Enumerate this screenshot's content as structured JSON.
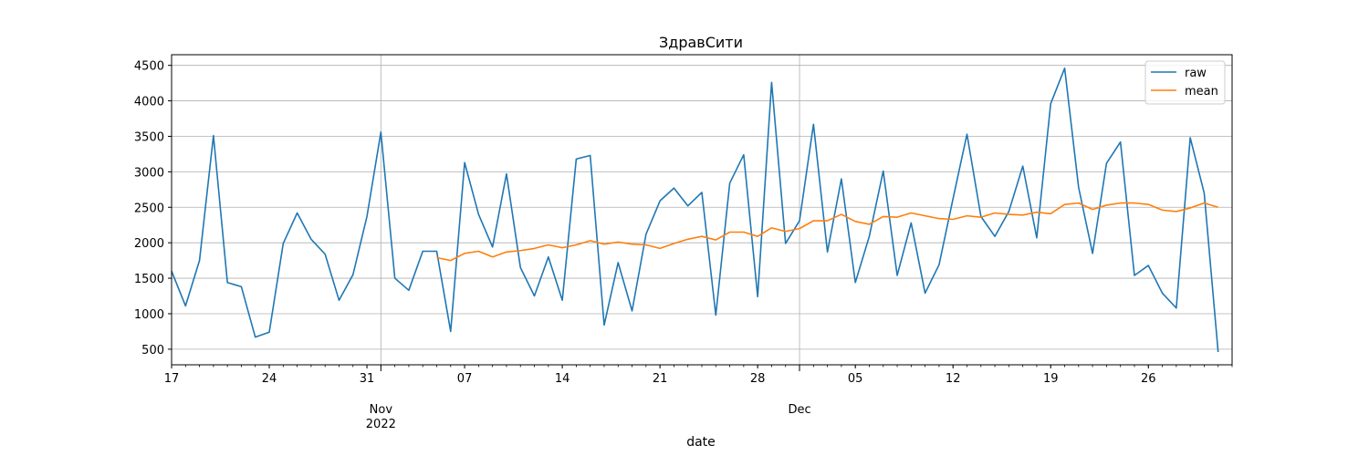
{
  "chart_data": {
    "type": "line",
    "title": "ЗдравСити",
    "xlabel": "date",
    "ylabel": "",
    "x_start": "2022-10-17",
    "xlim": [
      "2022-10-17",
      "2023-01-01"
    ],
    "ylim": [
      280,
      4650
    ],
    "yticks": [
      500,
      1000,
      1500,
      2000,
      2500,
      3000,
      3500,
      4000,
      4500
    ],
    "xticks_major": [
      {
        "date": "2022-11-01",
        "labels": [
          "Nov",
          "2022"
        ]
      },
      {
        "date": "2022-12-01",
        "labels": [
          "Dec"
        ]
      }
    ],
    "xticks_minor": [
      {
        "date": "2022-10-17",
        "label": "17"
      },
      {
        "date": "2022-10-24",
        "label": "24"
      },
      {
        "date": "2022-10-31",
        "label": "31"
      },
      {
        "date": "2022-11-07",
        "label": "07"
      },
      {
        "date": "2022-11-14",
        "label": "14"
      },
      {
        "date": "2022-11-21",
        "label": "21"
      },
      {
        "date": "2022-11-28",
        "label": "28"
      },
      {
        "date": "2022-12-05",
        "label": "05"
      },
      {
        "date": "2022-12-12",
        "label": "12"
      },
      {
        "date": "2022-12-19",
        "label": "19"
      },
      {
        "date": "2022-12-26",
        "label": "26"
      }
    ],
    "grid": true,
    "legend_position": "top-right",
    "series": [
      {
        "name": "raw",
        "color": "#1f77b4",
        "start": "2022-10-17",
        "values": [
          1600,
          1110,
          1750,
          3510,
          1440,
          1380,
          670,
          740,
          1990,
          2420,
          2050,
          1840,
          1190,
          1550,
          2370,
          3560,
          1500,
          1330,
          1880,
          1880,
          750,
          3130,
          2400,
          1940,
          2970,
          1650,
          1250,
          1800,
          1190,
          3180,
          3230,
          840,
          1720,
          1040,
          2120,
          2590,
          2770,
          2520,
          2710,
          980,
          2840,
          3240,
          1240,
          4260,
          1990,
          2310,
          3670,
          1870,
          2900,
          1440,
          2090,
          3010,
          1540,
          2280,
          1290,
          1690,
          2620,
          3530,
          2370,
          2090,
          2440,
          3080,
          2070,
          3960,
          4460,
          2780,
          1850,
          3120,
          3420,
          1540,
          1680,
          1290,
          1080,
          3480,
          2700,
          460
        ]
      },
      {
        "name": "mean",
        "color": "#ff7f0e",
        "start": "2022-11-05",
        "values": [
          1790,
          1750,
          1850,
          1880,
          1800,
          1870,
          1890,
          1920,
          1970,
          1930,
          1970,
          2030,
          1980,
          2010,
          1980,
          1970,
          1920,
          1990,
          2050,
          2090,
          2040,
          2150,
          2150,
          2090,
          2210,
          2160,
          2200,
          2310,
          2310,
          2400,
          2300,
          2260,
          2370,
          2360,
          2420,
          2380,
          2340,
          2330,
          2380,
          2360,
          2420,
          2400,
          2390,
          2430,
          2410,
          2540,
          2560,
          2470,
          2530,
          2560,
          2560,
          2540,
          2460,
          2440,
          2490,
          2560,
          2500
        ]
      }
    ]
  }
}
